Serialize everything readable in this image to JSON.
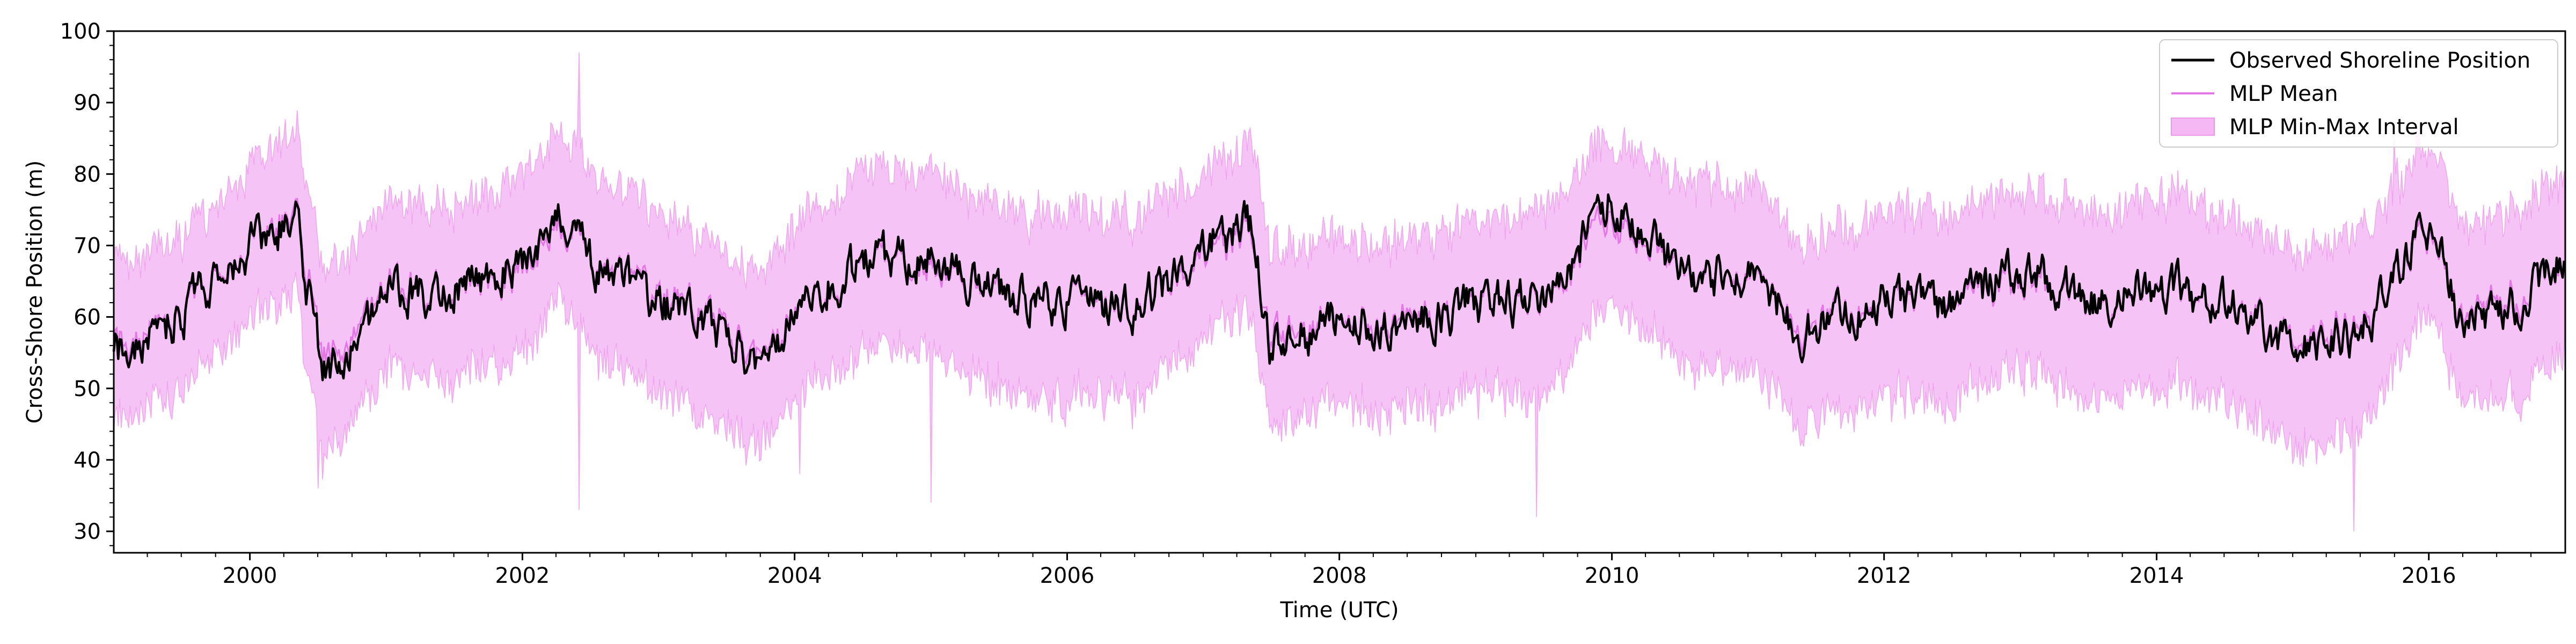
{
  "chart_data": {
    "type": "line",
    "title": "",
    "xlabel": "Time (UTC)",
    "ylabel": "Cross-Shore Position (m)",
    "xlim": [
      "1999-01-01",
      "2017-01-01"
    ],
    "ylim": [
      27,
      100
    ],
    "x_ticks": [
      "2000",
      "2002",
      "2004",
      "2006",
      "2008",
      "2010",
      "2012",
      "2014",
      "2016"
    ],
    "y_ticks": [
      "30",
      "40",
      "50",
      "60",
      "70",
      "80",
      "90",
      "100"
    ],
    "grid": false,
    "legend_position": "top-right",
    "series": [
      {
        "name": "Observed Shoreline Position",
        "kind": "line",
        "color": "#000000"
      },
      {
        "name": "MLP Mean",
        "kind": "line",
        "color": "#e377e6"
      },
      {
        "name": "MLP Min-Max Interval",
        "kind": "band",
        "color": "#f5b8f4"
      }
    ],
    "anchor_points": {
      "x": [
        "1999-01-01",
        "1999-07-01",
        "2000-01-01",
        "2000-05-01",
        "2000-07-15",
        "2001-01-01",
        "2001-07-01",
        "2002-01-01",
        "2002-04-15",
        "2002-07-01",
        "2003-01-01",
        "2003-07-01",
        "2003-10-01",
        "2004-03-01",
        "2004-08-01",
        "2005-01-01",
        "2005-07-01",
        "2006-01-01",
        "2006-07-01",
        "2007-01-01",
        "2007-05-15",
        "2007-07-01",
        "2008-01-01",
        "2008-06-01",
        "2009-01-01",
        "2009-07-01",
        "2010-01-01",
        "2010-07-01",
        "2011-01-01",
        "2011-06-01",
        "2012-01-01",
        "2012-07-01",
        "2013-01-01",
        "2013-07-01",
        "2014-01-01",
        "2014-07-01",
        "2015-01-01",
        "2015-07-01",
        "2016-01-01",
        "2016-04-01",
        "2016-09-01",
        "2017-01-01"
      ],
      "observed": [
        55,
        60,
        70,
        74,
        52,
        63,
        64,
        68,
        74,
        68,
        62,
        57,
        53,
        64,
        68,
        68,
        63,
        62,
        61,
        70,
        73,
        55,
        60,
        58,
        62,
        62,
        77,
        66,
        66,
        58,
        62,
        61,
        67,
        62,
        64,
        62,
        55,
        58,
        73,
        59,
        62,
        68
      ],
      "mean": [
        56,
        60,
        70,
        75,
        54,
        64,
        64,
        67,
        73,
        68,
        63,
        58,
        54,
        64,
        68,
        67,
        63,
        62,
        61,
        69,
        72,
        57,
        60,
        59,
        62,
        62,
        75,
        66,
        66,
        59,
        62,
        61,
        66,
        62,
        64,
        62,
        56,
        59,
        72,
        60,
        63,
        67
      ],
      "min": [
        48,
        52,
        62,
        66,
        42,
        55,
        54,
        58,
        65,
        58,
        52,
        47,
        44,
        54,
        58,
        58,
        52,
        51,
        51,
        60,
        63,
        47,
        51,
        49,
        52,
        51,
        65,
        56,
        55,
        48,
        51,
        50,
        56,
        51,
        53,
        51,
        44,
        47,
        63,
        50,
        52,
        58
      ],
      "max": [
        65,
        68,
        78,
        84,
        64,
        73,
        73,
        77,
        84,
        78,
        72,
        66,
        63,
        74,
        78,
        78,
        72,
        72,
        71,
        78,
        82,
        66,
        69,
        68,
        71,
        72,
        83,
        76,
        76,
        68,
        72,
        71,
        76,
        72,
        74,
        72,
        66,
        69,
        82,
        70,
        72,
        77
      ]
    },
    "notable_extremes": [
      {
        "x": "2000-07-01",
        "min": 36
      },
      {
        "x": "2002-06-01",
        "max": 97,
        "min": 33
      },
      {
        "x": "2004-01-15",
        "min": 38
      },
      {
        "x": "2005-01-01",
        "min": 34
      },
      {
        "x": "2009-06-15",
        "min": 32
      },
      {
        "x": "2015-06-15",
        "min": 30
      },
      {
        "x": "2015-10-01",
        "max": 85
      }
    ]
  }
}
